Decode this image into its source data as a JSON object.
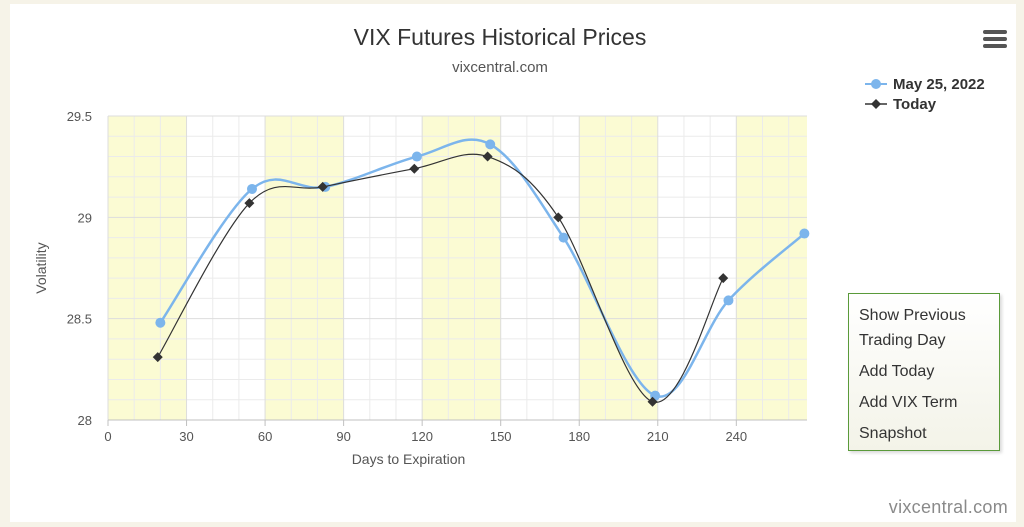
{
  "chart_data": {
    "type": "line",
    "title": "VIX Futures Historical Prices",
    "subtitle": "vixcentral.com",
    "xlabel": "Days to Expiration",
    "ylabel": "Volatility",
    "xlim": [
      0,
      267
    ],
    "ylim": [
      28,
      29.5
    ],
    "xticks": [
      0,
      30,
      60,
      90,
      120,
      150,
      180,
      210,
      240
    ],
    "yticks": [
      28,
      28.5,
      29,
      29.5
    ],
    "ytick_labels": [
      "28",
      "28.5",
      "29",
      "29.5"
    ],
    "grid": true,
    "legend_position": "top-right",
    "series": [
      {
        "name": "May 25, 2022",
        "color": "#7cb5ec",
        "marker": "circle",
        "x": [
          20,
          55,
          83,
          118,
          146,
          174,
          209,
          237,
          266
        ],
        "y": [
          28.48,
          29.14,
          29.15,
          29.3,
          29.36,
          28.9,
          28.12,
          28.59,
          28.92
        ]
      },
      {
        "name": "Today",
        "color": "#333333",
        "marker": "diamond",
        "x": [
          19,
          54,
          82,
          117,
          145,
          172,
          208,
          235
        ],
        "y": [
          28.31,
          29.07,
          29.15,
          29.24,
          29.3,
          29.0,
          28.09,
          28.7
        ]
      }
    ]
  },
  "menu": {
    "items": [
      "Show Previous",
      "Trading Day",
      "Add Today",
      "Add VIX Term",
      "Snapshot"
    ]
  },
  "credits": "vixcentral.com",
  "colors": {
    "band": "#fbfbd3",
    "grid": "#dddddd"
  }
}
